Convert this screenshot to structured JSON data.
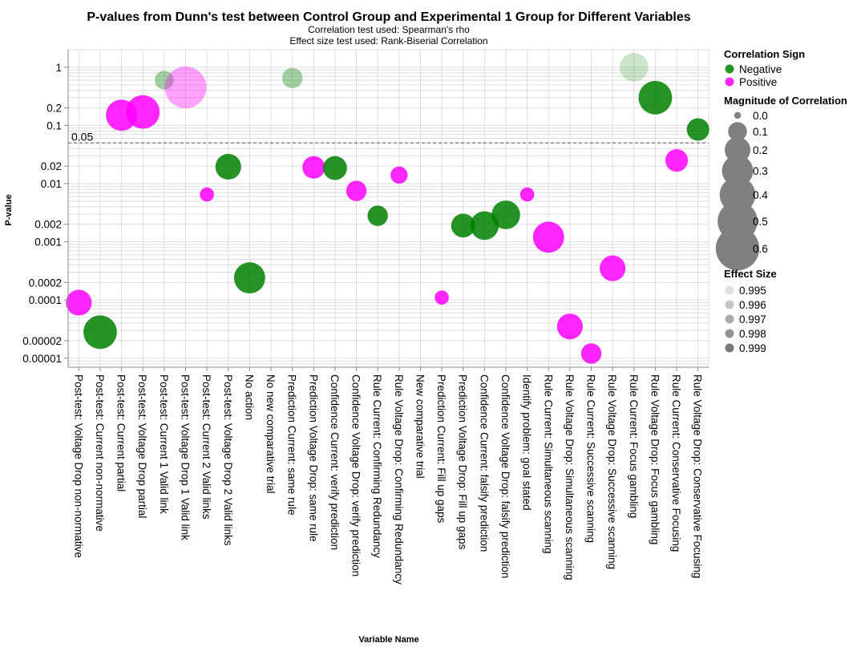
{
  "chart_data": {
    "type": "scatter",
    "title": "P-values from Dunn's test between Control Group and Experimental 1 Group for Different Variables",
    "subtitles": [
      "Correlation test used: Spearman's rho",
      "Effect size test used: Rank-Biserial Correlation"
    ],
    "xlabel": "Variable Name",
    "ylabel": "P-value",
    "yscale": "log",
    "ylim": [
      7e-06,
      2
    ],
    "yticks": [
      {
        "value": 1,
        "label": "1"
      },
      {
        "value": 0.2,
        "label": "0.2"
      },
      {
        "value": 0.1,
        "label": "0.1"
      },
      {
        "value": 0.02,
        "label": "0.02"
      },
      {
        "value": 0.01,
        "label": "0.01"
      },
      {
        "value": 0.002,
        "label": "0.002"
      },
      {
        "value": 0.001,
        "label": "0.001"
      },
      {
        "value": 0.0002,
        "label": "0.0002"
      },
      {
        "value": 0.0001,
        "label": "0.0001"
      },
      {
        "value": 2e-05,
        "label": "0.00002"
      },
      {
        "value": 1e-05,
        "label": "0.00001"
      }
    ],
    "grid": true,
    "reference_line": {
      "value": 0.05,
      "label": "0.05"
    },
    "colors": {
      "Negative": "#008000",
      "Positive": "#ff00ff"
    },
    "categories": [
      "Post-test: Voltage Drop non-normative",
      "Post-test: Current non-normative",
      "Post-test: Current partial",
      "Post-test: Voltage Drop partial",
      "Post-test: Current 1 Valid link",
      "Post-test: Voltage Drop 1 Valid link",
      "Post-test: Current 2 Valid links",
      "Post-test: Voltage Drop 2 Valid links",
      "No action",
      "No new comparative trial",
      "Prediction Current: same rule",
      "Prediction Voltage Drop: same rule",
      "Confidence Current: verify prediction",
      "Confidence Voltage Drop: verify prediction",
      "Rule Current: Confirming Redundancy",
      "Rule Voltage Drop: Confirming Redundancy",
      "New comparative trial",
      "Prediction Current: Fill up gaps",
      "Prediction Voltage Drop: Fill up gaps",
      "Confidence Current: falsify prediction",
      "Confidence Voltage Drop: falsify prediction",
      "Identify problem: goal stated",
      "Rule Current: Simultaneous scanning",
      "Rule Voltage Drop: Simultaneous scanning",
      "Rule Current: Successive scanning",
      "Rule Voltage Drop: Successive scanning",
      "Rule Current: Focus gambling",
      "Rule Voltage Drop: Focus gambling",
      "Rule Current: Conservative Focusing",
      "Rule Voltage Drop: Conservative Focusing"
    ],
    "points": [
      {
        "category": "Post-test: Voltage Drop non-normative",
        "p_value": 9e-05,
        "sign": "Positive",
        "magnitude": 0.2,
        "effect_size": 0.999
      },
      {
        "category": "Post-test: Current non-normative",
        "p_value": 2.8e-05,
        "sign": "Negative",
        "magnitude": 0.35,
        "effect_size": 0.999
      },
      {
        "category": "Post-test: Current partial",
        "p_value": 0.15,
        "sign": "Positive",
        "magnitude": 0.3,
        "effect_size": 0.999
      },
      {
        "category": "Post-test: Voltage Drop partial",
        "p_value": 0.17,
        "sign": "Positive",
        "magnitude": 0.35,
        "effect_size": 0.999
      },
      {
        "category": "Post-test: Current 1 Valid link",
        "p_value": 0.6,
        "sign": "Negative",
        "magnitude": 0.1,
        "effect_size": 0.996
      },
      {
        "category": "Post-test: Voltage Drop 1 Valid link",
        "p_value": 0.45,
        "sign": "Positive",
        "magnitude": 0.55,
        "effect_size": 0.996
      },
      {
        "category": "Post-test: Current 2 Valid links",
        "p_value": 0.0065,
        "sign": "Positive",
        "magnitude": 0.05,
        "effect_size": 0.999
      },
      {
        "category": "Post-test: Voltage Drop 2 Valid links",
        "p_value": 0.0195,
        "sign": "Negative",
        "magnitude": 0.2,
        "effect_size": 0.999
      },
      {
        "category": "No action",
        "p_value": 0.00024,
        "sign": "Negative",
        "magnitude": 0.3,
        "effect_size": 0.999
      },
      {
        "category": "Prediction Current: same rule",
        "p_value": 0.65,
        "sign": "Negative",
        "magnitude": 0.12,
        "effect_size": 0.996
      },
      {
        "category": "Prediction Voltage Drop: same rule",
        "p_value": 0.019,
        "sign": "Positive",
        "magnitude": 0.15,
        "effect_size": 0.999
      },
      {
        "category": "Confidence Current: verify prediction",
        "p_value": 0.0185,
        "sign": "Negative",
        "magnitude": 0.17,
        "effect_size": 0.999
      },
      {
        "category": "Confidence Voltage Drop: verify prediction",
        "p_value": 0.0075,
        "sign": "Positive",
        "magnitude": 0.12,
        "effect_size": 0.999
      },
      {
        "category": "Rule Current: Confirming Redundancy",
        "p_value": 0.0028,
        "sign": "Negative",
        "magnitude": 0.12,
        "effect_size": 0.999
      },
      {
        "category": "Rule Voltage Drop: Confirming Redundancy",
        "p_value": 0.014,
        "sign": "Positive",
        "magnitude": 0.08,
        "effect_size": 0.999
      },
      {
        "category": "Prediction Current: Fill up gaps",
        "p_value": 0.00011,
        "sign": "Positive",
        "magnitude": 0.05,
        "effect_size": 0.999
      },
      {
        "category": "Prediction Voltage Drop: Fill up gaps",
        "p_value": 0.0019,
        "sign": "Negative",
        "magnitude": 0.17,
        "effect_size": 0.999
      },
      {
        "category": "Confidence Current: falsify prediction",
        "p_value": 0.0019,
        "sign": "Negative",
        "magnitude": 0.25,
        "effect_size": 0.999
      },
      {
        "category": "Confidence Voltage Drop: falsify prediction",
        "p_value": 0.0029,
        "sign": "Negative",
        "magnitude": 0.25,
        "effect_size": 0.999
      },
      {
        "category": "Identify problem: goal stated",
        "p_value": 0.0065,
        "sign": "Positive",
        "magnitude": 0.05,
        "effect_size": 0.999
      },
      {
        "category": "Rule Current: Simultaneous scanning",
        "p_value": 0.0012,
        "sign": "Positive",
        "magnitude": 0.3,
        "effect_size": 0.999
      },
      {
        "category": "Rule Voltage Drop: Simultaneous scanning",
        "p_value": 3.5e-05,
        "sign": "Positive",
        "magnitude": 0.2,
        "effect_size": 0.999
      },
      {
        "category": "Rule Current: Successive scanning",
        "p_value": 1.2e-05,
        "sign": "Positive",
        "magnitude": 0.12,
        "effect_size": 0.999
      },
      {
        "category": "Rule Voltage Drop: Successive scanning",
        "p_value": 0.00035,
        "sign": "Positive",
        "magnitude": 0.2,
        "effect_size": 0.999
      },
      {
        "category": "Rule Current: Focus gambling",
        "p_value": 1.0,
        "sign": "Negative",
        "magnitude": 0.25,
        "effect_size": 0.995
      },
      {
        "category": "Rule Voltage Drop: Focus gambling",
        "p_value": 0.3,
        "sign": "Negative",
        "magnitude": 0.35,
        "effect_size": 0.999
      },
      {
        "category": "Rule Current: Conservative Focusing",
        "p_value": 0.025,
        "sign": "Positive",
        "magnitude": 0.15,
        "effect_size": 0.999
      },
      {
        "category": "Rule Voltage Drop: Conservative Focusing",
        "p_value": 0.085,
        "sign": "Negative",
        "magnitude": 0.15,
        "effect_size": 0.999
      }
    ],
    "legend": {
      "placement": "right",
      "sign_title": "Correlation Sign",
      "sign_items": [
        {
          "label": "Negative",
          "color": "#008000"
        },
        {
          "label": "Positive",
          "color": "#ff00ff"
        }
      ],
      "magnitude_title": "Magnitude of Correlation",
      "magnitude_items": [
        {
          "label": "0.0",
          "value": 0.0
        },
        {
          "label": "0.1",
          "value": 0.1
        },
        {
          "label": "0.2",
          "value": 0.2
        },
        {
          "label": "0.3",
          "value": 0.3
        },
        {
          "label": "0.4",
          "value": 0.4
        },
        {
          "label": "0.5",
          "value": 0.5
        },
        {
          "label": "0.6",
          "value": 0.6
        }
      ],
      "effect_title": "Effect Size",
      "effect_items": [
        {
          "label": "0.995",
          "value": 0.995
        },
        {
          "label": "0.996",
          "value": 0.996
        },
        {
          "label": "0.997",
          "value": 0.997
        },
        {
          "label": "0.998",
          "value": 0.998
        },
        {
          "label": "0.999",
          "value": 0.999
        }
      ]
    }
  }
}
